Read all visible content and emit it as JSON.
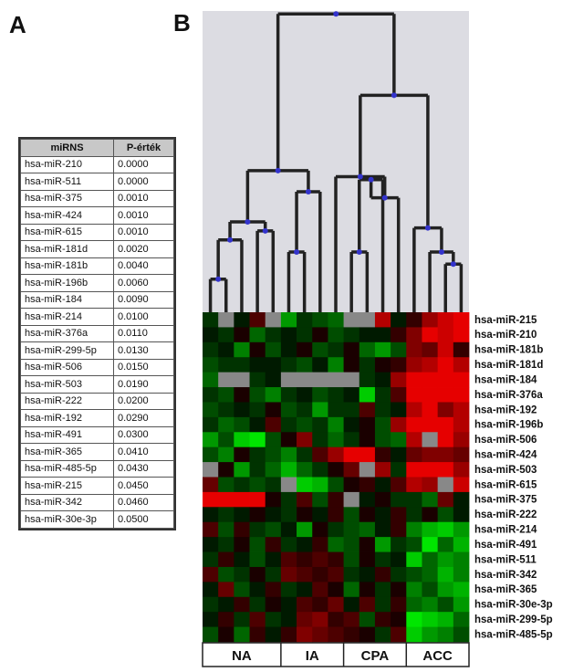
{
  "panel_a_letter": "A",
  "panel_b_letter": "B",
  "table": {
    "headers": [
      "miRNS",
      "P-érték"
    ],
    "rows": [
      [
        "hsa-miR-210",
        "0.0000"
      ],
      [
        "hsa-miR-511",
        "0.0000"
      ],
      [
        "hsa-miR-375",
        "0.0010"
      ],
      [
        "hsa-miR-424",
        "0.0010"
      ],
      [
        "hsa-miR-615",
        "0.0010"
      ],
      [
        "hsa-miR-181d",
        "0.0020"
      ],
      [
        "hsa-miR-181b",
        "0.0040"
      ],
      [
        "hsa-miR-196b",
        "0.0060"
      ],
      [
        "hsa-miR-184",
        "0.0090"
      ],
      [
        "hsa-miR-214",
        "0.0100"
      ],
      [
        "hsa-miR-376a",
        "0.0110"
      ],
      [
        "hsa-miR-299-5p",
        "0.0130"
      ],
      [
        "hsa-miR-506",
        "0.0150"
      ],
      [
        "hsa-miR-503",
        "0.0190"
      ],
      [
        "hsa-miR-222",
        "0.0200"
      ],
      [
        "hsa-miR-192",
        "0.0290"
      ],
      [
        "hsa-miR-491",
        "0.0300"
      ],
      [
        "hsa-miR-365",
        "0.0410"
      ],
      [
        "hsa-miR-485-5p",
        "0.0430"
      ],
      [
        "hsa-miR-215",
        "0.0450"
      ],
      [
        "hsa-miR-342",
        "0.0460"
      ],
      [
        "hsa-miR-30e-3p",
        "0.0500"
      ]
    ]
  },
  "chart_data": {
    "type": "heatmap",
    "colors": {
      "up": "#ff0000",
      "down": "#00ff00",
      "zero": "#000000",
      "missing": "#888888",
      "dendrogram_bg": "#dcdce2",
      "dendrogram_line": "#222222",
      "node": "#3333cc"
    },
    "group_labels": [
      "NA",
      "IA",
      "CPA",
      "ACC"
    ],
    "group_sizes": [
      5,
      4,
      4,
      4
    ],
    "row_labels": [
      "hsa-miR-215",
      "hsa-miR-210",
      "hsa-miR-181b",
      "hsa-miR-181d",
      "hsa-miR-184",
      "hsa-miR-376a",
      "hsa-miR-192",
      "hsa-miR-196b",
      "hsa-miR-506",
      "hsa-miR-424",
      "hsa-miR-503",
      "hsa-miR-615",
      "hsa-miR-375",
      "hsa-miR-222",
      "hsa-miR-214",
      "hsa-miR-491",
      "hsa-miR-511",
      "hsa-miR-342",
      "hsa-miR-365",
      "hsa-miR-30e-3p",
      "hsa-miR-299-5p",
      "hsa-miR-485-5p"
    ],
    "values": [
      [
        -0.2,
        "NA",
        -0.1,
        0.3,
        "NA",
        -0.6,
        -0.2,
        -0.3,
        -0.4,
        "NA",
        "NA",
        0.7,
        -0.1,
        0.2,
        0.6,
        0.8,
        0.9
      ],
      [
        -0.1,
        -0.2,
        0.1,
        -0.4,
        -0.2,
        -0.1,
        -0.2,
        0.1,
        -0.3,
        -0.2,
        -0.1,
        -0.1,
        0.2,
        0.5,
        0.9,
        0.8,
        0.9
      ],
      [
        -0.2,
        -0.1,
        -0.5,
        0.1,
        -0.3,
        -0.1,
        0.1,
        -0.3,
        -0.2,
        0.1,
        -0.4,
        -0.6,
        -0.3,
        0.5,
        0.4,
        0.8,
        0.2
      ],
      [
        -0.3,
        -0.2,
        -0.2,
        -0.1,
        -0.1,
        -0.2,
        -0.3,
        -0.1,
        -0.5,
        0.1,
        -0.2,
        0.1,
        0.2,
        0.6,
        0.7,
        0.9,
        0.7
      ],
      [
        -0.4,
        "NA",
        "NA",
        -0.2,
        -0.1,
        "NA",
        "NA",
        "NA",
        "NA",
        "NA",
        -0.2,
        -0.1,
        0.6,
        0.9,
        0.9,
        0.9,
        0.9
      ],
      [
        -0.2,
        -0.3,
        0.1,
        -0.3,
        -0.5,
        -0.2,
        -0.1,
        -0.3,
        -0.2,
        -0.1,
        -0.8,
        -0.2,
        0.3,
        0.9,
        0.9,
        0.9,
        0.9
      ],
      [
        -0.3,
        -0.2,
        -0.1,
        -0.2,
        0.1,
        -0.3,
        -0.2,
        -0.6,
        -0.2,
        -0.2,
        0.3,
        -0.2,
        -0.1,
        0.7,
        0.9,
        0.5,
        0.7
      ],
      [
        -0.2,
        -0.4,
        -0.3,
        -0.1,
        0.3,
        -0.2,
        -0.3,
        -0.2,
        -0.5,
        -0.1,
        0.1,
        -0.3,
        0.6,
        0.9,
        0.9,
        0.9,
        0.7
      ],
      [
        -0.6,
        -0.3,
        -0.8,
        -0.9,
        -0.3,
        0.1,
        0.5,
        -0.2,
        -0.4,
        -0.2,
        0.1,
        -0.3,
        -0.4,
        0.7,
        "NA",
        0.9,
        0.6
      ],
      [
        -0.3,
        -0.5,
        0.1,
        -0.2,
        -0.3,
        -0.5,
        -0.2,
        0.3,
        0.6,
        0.9,
        0.9,
        0.2,
        -0.1,
        0.4,
        0.5,
        0.5,
        0.4
      ],
      [
        "NA",
        0.1,
        -0.6,
        -0.2,
        -0.4,
        -0.7,
        -0.4,
        -0.2,
        0.1,
        0.4,
        "NA",
        0.6,
        -0.2,
        0.9,
        0.9,
        0.9,
        0.6
      ],
      [
        0.4,
        -0.3,
        -0.2,
        -0.3,
        -0.2,
        "NA",
        -0.8,
        -0.7,
        -0.3,
        0.1,
        0.2,
        -0.1,
        0.3,
        0.7,
        0.6,
        "NA",
        0.8
      ],
      [
        0.9,
        0.9,
        0.9,
        0.9,
        0.1,
        -0.2,
        0.3,
        -0.3,
        0.2,
        "NA",
        -0.1,
        0.1,
        -0.2,
        -0.2,
        -0.4,
        0.4,
        -0.1
      ],
      [
        -0.1,
        -0.2,
        -0.1,
        0.1,
        -0.1,
        -0.2,
        0.1,
        -0.1,
        0.2,
        -0.3,
        0.1,
        -0.1,
        0.2,
        -0.2,
        0.1,
        -0.3,
        -0.1
      ],
      [
        0.3,
        -0.3,
        0.2,
        -0.2,
        -0.3,
        -0.1,
        -0.6,
        0.1,
        -0.2,
        -0.3,
        -0.4,
        -0.1,
        0.2,
        -0.5,
        -0.7,
        -0.8,
        -0.6
      ],
      [
        -0.1,
        -0.2,
        0.1,
        -0.3,
        0.2,
        -0.2,
        -0.1,
        0.2,
        -0.4,
        -0.3,
        0.1,
        -0.6,
        -0.2,
        -0.3,
        -0.9,
        -0.4,
        -0.7
      ],
      [
        -0.2,
        0.2,
        -0.1,
        -0.3,
        -0.1,
        0.3,
        0.2,
        0.3,
        0.2,
        -0.3,
        0.1,
        -0.2,
        -0.1,
        -0.8,
        -0.4,
        -0.6,
        -0.5
      ],
      [
        0.3,
        -0.3,
        -0.2,
        0.1,
        -0.2,
        0.4,
        0.3,
        0.2,
        0.3,
        -0.2,
        -0.1,
        0.2,
        -0.2,
        -0.3,
        -0.4,
        -0.7,
        -0.5
      ],
      [
        -0.1,
        0.4,
        -0.3,
        -0.1,
        0.2,
        -0.2,
        -0.1,
        0.3,
        0.1,
        -0.4,
        0.1,
        -0.2,
        0.1,
        -0.5,
        -0.3,
        -0.6,
        -0.7
      ],
      [
        -0.2,
        -0.1,
        0.2,
        -0.2,
        0.1,
        -0.1,
        0.3,
        0.2,
        0.4,
        -0.1,
        0.3,
        -0.2,
        0.2,
        -0.4,
        -0.5,
        -0.3,
        -0.6
      ],
      [
        -0.1,
        0.2,
        -0.2,
        0.3,
        -0.2,
        -0.1,
        0.4,
        0.5,
        0.2,
        0.3,
        -0.3,
        0.2,
        0.1,
        -0.9,
        -0.8,
        -0.7,
        -0.4
      ],
      [
        -0.3,
        0.1,
        -0.4,
        0.2,
        -0.1,
        0.2,
        0.5,
        0.4,
        0.3,
        0.2,
        0.1,
        -0.2,
        0.3,
        -0.8,
        -0.6,
        -0.5,
        -0.3
      ]
    ]
  }
}
